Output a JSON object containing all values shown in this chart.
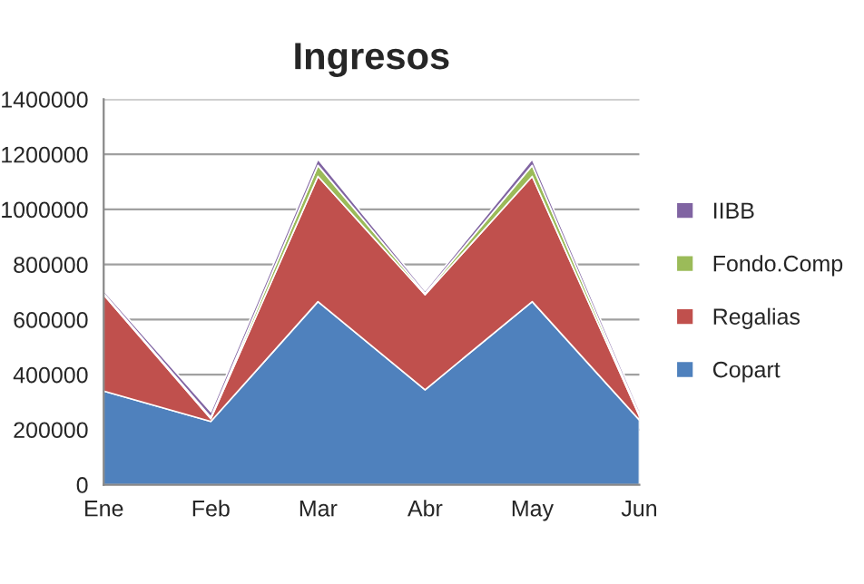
{
  "chart_data": {
    "type": "area",
    "title": "Ingresos",
    "stacked": true,
    "categories": [
      "Ene",
      "Feb",
      "Mar",
      "Abr",
      "May",
      "Jun"
    ],
    "series": [
      {
        "name": "Copart",
        "color": "#4f81bd",
        "values": [
          340000,
          230000,
          665000,
          345000,
          665000,
          235000
        ]
      },
      {
        "name": "Regalias",
        "color": "#c0504d",
        "values": [
          350000,
          10000,
          455000,
          345000,
          455000,
          15000
        ]
      },
      {
        "name": "Fondo.Comp",
        "color": "#9bbb59",
        "values": [
          5000,
          5000,
          40000,
          5000,
          40000,
          5000
        ]
      },
      {
        "name": "IIBB",
        "color": "#8064a2",
        "values": [
          10000,
          20000,
          23000,
          10000,
          23000,
          15000
        ]
      }
    ],
    "ylim": [
      0,
      1400000
    ],
    "yticks": [
      0,
      200000,
      400000,
      600000,
      800000,
      1000000,
      1200000,
      1400000
    ],
    "grid": "y",
    "legend": "right"
  }
}
